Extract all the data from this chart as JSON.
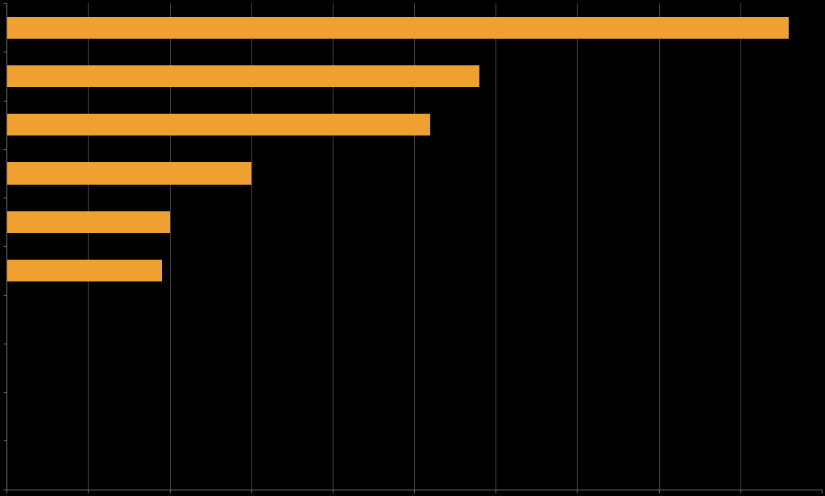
{
  "values": [
    96,
    58,
    52,
    30,
    20,
    19
  ],
  "bar_color": "#F0A030",
  "background_color": "#000000",
  "grid_color": "#444444",
  "spine_color": "#666666",
  "xlim": [
    0,
    100
  ],
  "ylim": [
    -4.5,
    5.5
  ],
  "bar_height": 0.45,
  "figsize": [
    10.24,
    6.15
  ],
  "dpi": 100,
  "n_yticks": 11,
  "n_xticks": 10
}
